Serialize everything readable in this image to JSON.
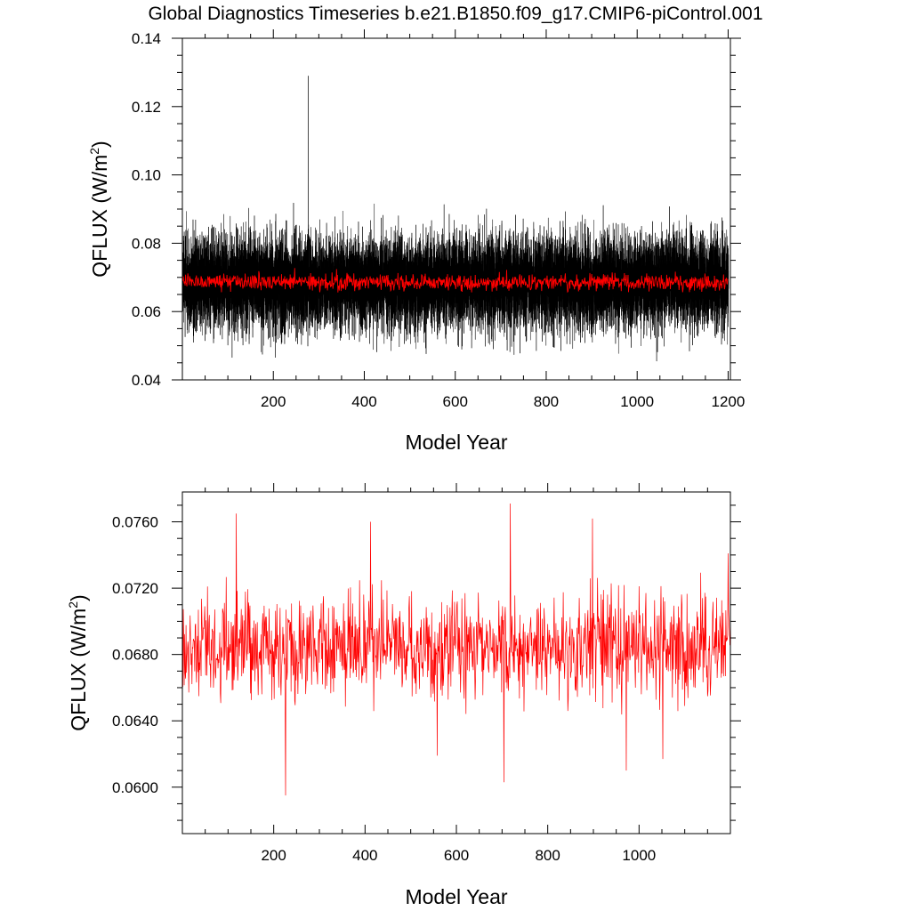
{
  "title": "Global Diagnostics Timeseries b.e21.B1850.f09_g17.CMIP6-piControl.001",
  "colors": {
    "monthly": "#000000",
    "annual": "#ff0000"
  },
  "chart_data": [
    {
      "type": "line",
      "xlabel": "Model Year",
      "ylabel_main": "QFLUX (W/m",
      "ylabel_sup": "2",
      "ylabel_close": ")",
      "xlim": [
        0,
        1205
      ],
      "ylim": [
        0.04,
        0.14
      ],
      "xticks": [
        200,
        400,
        600,
        800,
        1000,
        1200
      ],
      "xtick_labels": [
        "200",
        "400",
        "600",
        "800",
        "1000",
        "1200"
      ],
      "yticks": [
        0.04,
        0.06,
        0.08,
        0.1,
        0.12,
        0.14
      ],
      "ytick_labels": [
        "0.04",
        "0.06",
        "0.08",
        "0.10",
        "0.12",
        "0.14"
      ],
      "grid": false,
      "series": [
        {
          "resolution": "monthly",
          "color": "#000000",
          "mean": 0.0685,
          "envelope_low": 0.05,
          "envelope_high": 0.09,
          "extreme_max": 0.129,
          "extreme_max_year": 276,
          "extreme_min": 0.042
        },
        {
          "resolution": "annual",
          "color": "#ff0000",
          "mean": 0.0685,
          "range": [
            0.061,
            0.0755
          ]
        }
      ]
    },
    {
      "type": "line",
      "xlabel": "Model Year",
      "ylabel_main": "QFLUX (W/m",
      "ylabel_sup": "2",
      "ylabel_close": ")",
      "xlim": [
        0,
        1200
      ],
      "ylim": [
        0.0572,
        0.0778
      ],
      "xticks": [
        200,
        400,
        600,
        800,
        1000
      ],
      "xtick_labels": [
        "200",
        "400",
        "600",
        "800",
        "1000"
      ],
      "yticks": [
        0.06,
        0.064,
        0.068,
        0.072,
        0.076
      ],
      "ytick_labels": [
        "0.0600",
        "0.0640",
        "0.0680",
        "0.0720",
        "0.0760"
      ],
      "grid": false,
      "series": [
        {
          "resolution": "annual",
          "color": "#ff0000",
          "mean": 0.0685,
          "max": 0.0771,
          "max_year": 718,
          "min": 0.0595,
          "min_year": 226,
          "peaks": [
            [
              118,
              0.0765
            ],
            [
              412,
              0.076
            ],
            [
              718,
              0.0771
            ],
            [
              898,
              0.0762
            ],
            [
              1195,
              0.0741
            ]
          ],
          "troughs": [
            [
              226,
              0.0595
            ],
            [
              558,
              0.0619
            ],
            [
              704,
              0.0603
            ],
            [
              972,
              0.061
            ],
            [
              1052,
              0.0617
            ]
          ]
        }
      ]
    }
  ]
}
